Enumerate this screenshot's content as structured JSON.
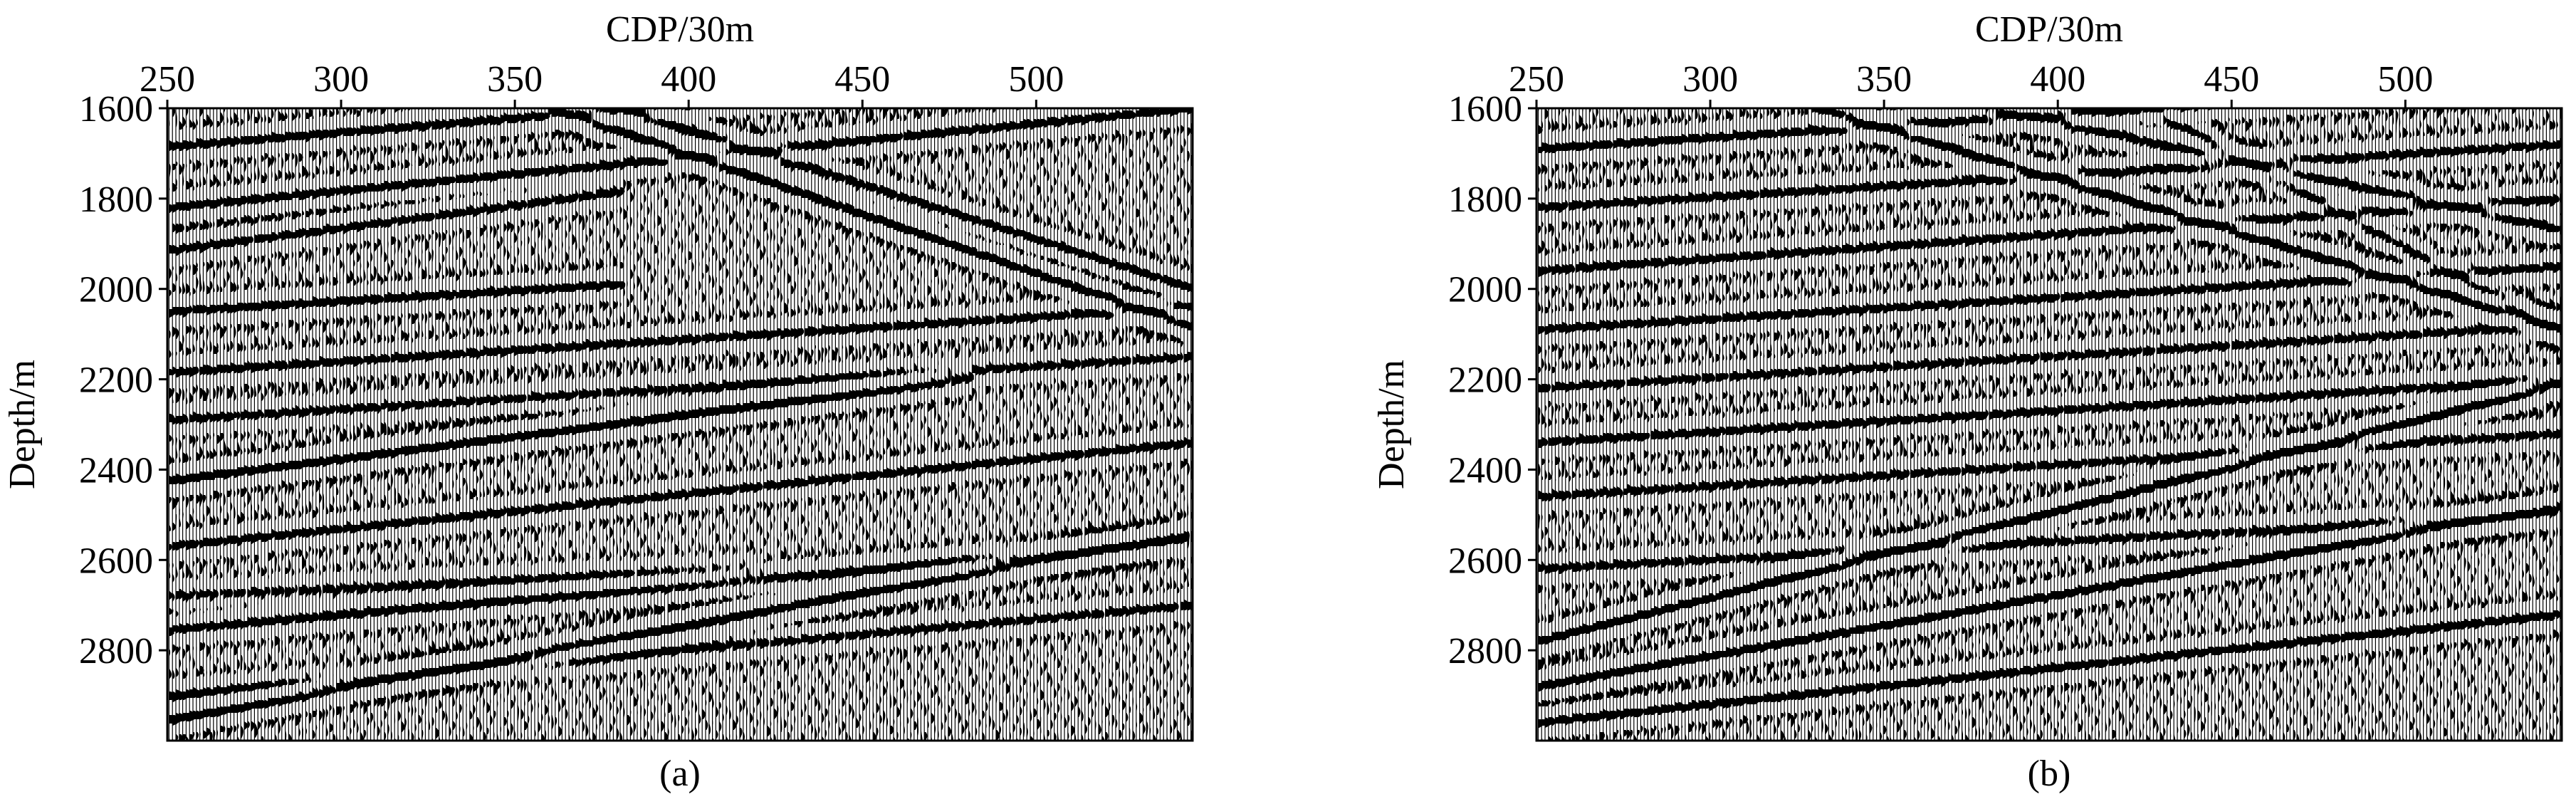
{
  "colors": {
    "trace_fill": "#000000",
    "background": "#ffffff",
    "axis": "#000000"
  },
  "chart_data": [
    {
      "type": "seismic-section",
      "panel_label": "(a)",
      "xlabel": "CDP/30m",
      "ylabel": "Depth/m",
      "x_axis_position": "top",
      "xlim": [
        250,
        545
      ],
      "ylim": [
        1600,
        3000
      ],
      "y_inverted": true,
      "xticks": [
        250,
        300,
        350,
        400,
        450,
        500
      ],
      "yticks": [
        1600,
        1800,
        2000,
        2200,
        2400,
        2600,
        2800
      ],
      "grid": false,
      "style": "wiggle-trace variable-area, black fill",
      "reflectors": [
        {
          "from": [
            250,
            1685
          ],
          "to": [
            545,
            1500
          ],
          "strength": 1.0
        },
        {
          "from": [
            250,
            1820
          ],
          "to": [
            545,
            1600
          ],
          "strength": 1.0
        },
        {
          "from": [
            250,
            1915
          ],
          "to": [
            380,
            1785
          ],
          "strength": 0.9
        },
        {
          "from": [
            250,
            2050
          ],
          "to": [
            380,
            1990
          ],
          "strength": 1.0
        },
        {
          "from": [
            250,
            2185
          ],
          "to": [
            545,
            2040
          ],
          "strength": 0.9
        },
        {
          "from": [
            250,
            2290
          ],
          "to": [
            545,
            2150
          ],
          "strength": 0.8
        },
        {
          "from": [
            250,
            2425
          ],
          "to": [
            480,
            2200
          ],
          "strength": 1.3
        },
        {
          "from": [
            250,
            2570
          ],
          "to": [
            545,
            2340
          ],
          "strength": 0.9
        },
        {
          "from": [
            250,
            2755
          ],
          "to": [
            545,
            2560
          ],
          "strength": 1.0
        },
        {
          "from": [
            250,
            2955
          ],
          "to": [
            545,
            2540
          ],
          "strength": 1.3
        },
        {
          "from": [
            250,
            2900
          ],
          "to": [
            545,
            2700
          ],
          "strength": 0.8
        },
        {
          "from": [
            360,
            1600
          ],
          "to": [
            545,
            2085
          ],
          "strength": 1.3
        },
        {
          "from": [
            380,
            1600
          ],
          "to": [
            545,
            2000
          ],
          "strength": 1.0
        },
        {
          "from": [
            250,
            2680
          ],
          "to": [
            420,
            2620
          ],
          "strength": 0.7
        }
      ]
    },
    {
      "type": "seismic-section",
      "panel_label": "(b)",
      "xlabel": "CDP/30m",
      "ylabel": "Depth/m",
      "x_axis_position": "top",
      "xlim": [
        250,
        545
      ],
      "ylim": [
        1600,
        3000
      ],
      "y_inverted": true,
      "xticks": [
        250,
        300,
        350,
        400,
        450,
        500
      ],
      "yticks": [
        1600,
        1800,
        2000,
        2200,
        2400,
        2600,
        2800
      ],
      "grid": false,
      "style": "wiggle-trace variable-area, black fill",
      "reflectors": [
        {
          "from": [
            250,
            1690
          ],
          "to": [
            545,
            1540
          ],
          "strength": 1.0
        },
        {
          "from": [
            250,
            1820
          ],
          "to": [
            545,
            1680
          ],
          "strength": 0.9
        },
        {
          "from": [
            250,
            1960
          ],
          "to": [
            545,
            1800
          ],
          "strength": 0.9
        },
        {
          "from": [
            250,
            2090
          ],
          "to": [
            545,
            1950
          ],
          "strength": 0.9
        },
        {
          "from": [
            250,
            2220
          ],
          "to": [
            545,
            2080
          ],
          "strength": 0.8
        },
        {
          "from": [
            250,
            2340
          ],
          "to": [
            545,
            2200
          ],
          "strength": 0.9
        },
        {
          "from": [
            250,
            2460
          ],
          "to": [
            545,
            2320
          ],
          "strength": 0.8
        },
        {
          "from": [
            250,
            2780
          ],
          "to": [
            545,
            2210
          ],
          "strength": 1.3
        },
        {
          "from": [
            250,
            2880
          ],
          "to": [
            545,
            2480
          ],
          "strength": 1.2
        },
        {
          "from": [
            250,
            2960
          ],
          "to": [
            545,
            2720
          ],
          "strength": 1.0
        },
        {
          "from": [
            250,
            2620
          ],
          "to": [
            545,
            2500
          ],
          "strength": 0.8
        },
        {
          "from": [
            330,
            1600
          ],
          "to": [
            545,
            2090
          ],
          "strength": 1.3
        },
        {
          "from": [
            380,
            1600
          ],
          "to": [
            545,
            1870
          ],
          "strength": 1.0
        },
        {
          "from": [
            430,
            1620
          ],
          "to": [
            545,
            2100
          ],
          "strength": 0.8
        }
      ]
    }
  ]
}
